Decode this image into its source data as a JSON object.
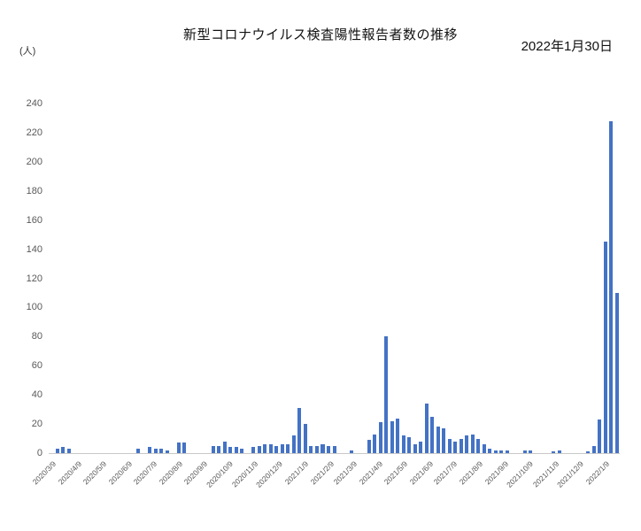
{
  "header": {
    "title": "新型コロナウイルス検査陽性報告者数の推移",
    "date": "2022年1月30日",
    "unit_label": "(人)"
  },
  "chart_data": {
    "type": "bar",
    "title": "新型コロナウイルス検査陽性報告者数の推移",
    "annotation_date": "2022年1月30日",
    "ylabel": "(人)",
    "xlabel": "",
    "ylim": [
      0,
      240
    ],
    "ytick_step": 20,
    "grid": "off",
    "legend": "none",
    "bar_color": "#4472C4",
    "x_start": "2020/3/9",
    "x_frequency": "weekly",
    "x_tick_labels": [
      "2020/3/9",
      "2020/4/9",
      "2020/5/9",
      "2020/6/9",
      "2020/7/9",
      "2020/8/9",
      "2020/9/9",
      "2020/10/9",
      "2020/11/9",
      "2020/12/9",
      "2021/1/9",
      "2021/2/9",
      "2021/3/9",
      "2021/4/9",
      "2021/5/9",
      "2021/6/9",
      "2021/7/9",
      "2021/8/9",
      "2021/9/9",
      "2021/10/9",
      "2021/11/9",
      "2021/12/9",
      "2022/1/9"
    ],
    "values": [
      0,
      3,
      4,
      3,
      0,
      0,
      0,
      0,
      0,
      0,
      0,
      0,
      0,
      0,
      0,
      3,
      0,
      4,
      3,
      3,
      2,
      0,
      7,
      7,
      0,
      0,
      0,
      0,
      5,
      5,
      8,
      4,
      4,
      3,
      0,
      4,
      5,
      6,
      6,
      5,
      6,
      6,
      12,
      31,
      20,
      5,
      5,
      6,
      5,
      5,
      0,
      0,
      2,
      0,
      0,
      9,
      13,
      21,
      80,
      22,
      24,
      12,
      11,
      6,
      8,
      34,
      25,
      18,
      17,
      10,
      8,
      10,
      12,
      13,
      10,
      6,
      3,
      2,
      2,
      2,
      0,
      0,
      2,
      2,
      0,
      0,
      0,
      1,
      2,
      0,
      0,
      0,
      0,
      1,
      5,
      23,
      145,
      228,
      110
    ]
  }
}
